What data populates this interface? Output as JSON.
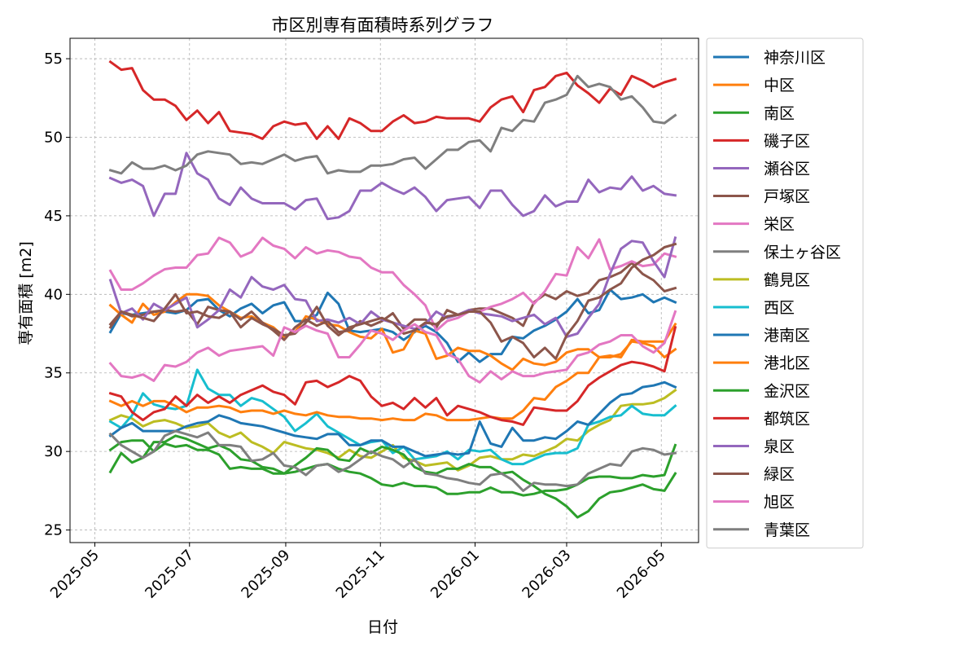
{
  "chart_data": {
    "type": "line",
    "title": "市区別専有面積時系列グラフ",
    "xlabel": "日付",
    "ylabel": "専有面積 [m2]",
    "x_range": [
      "2025-04-15",
      "2026-05-25"
    ],
    "ylim": [
      24.2,
      56.3
    ],
    "x_ticks": [
      {
        "date": "2025-05-01",
        "label": "2025-05"
      },
      {
        "date": "2025-07-01",
        "label": "2025-07"
      },
      {
        "date": "2025-09-01",
        "label": "2025-09"
      },
      {
        "date": "2025-11-01",
        "label": "2025-11"
      },
      {
        "date": "2026-01-01",
        "label": "2026-01"
      },
      {
        "date": "2026-03-01",
        "label": "2026-03"
      },
      {
        "date": "2026-05-01",
        "label": "2026-05"
      }
    ],
    "y_ticks": [
      25,
      30,
      35,
      40,
      45,
      50,
      55
    ],
    "grid": true,
    "legend_position": "outside-right",
    "x": [
      "2025-05-11",
      "2025-05-18",
      "2025-05-25",
      "2025-06-01",
      "2025-06-08",
      "2025-06-15",
      "2025-06-22",
      "2025-06-29",
      "2025-07-06",
      "2025-07-13",
      "2025-07-20",
      "2025-07-27",
      "2025-08-03",
      "2025-08-10",
      "2025-08-17",
      "2025-08-24",
      "2025-08-31",
      "2025-09-07",
      "2025-09-14",
      "2025-09-21",
      "2025-09-28",
      "2025-10-05",
      "2025-10-12",
      "2025-10-19",
      "2025-10-26",
      "2025-11-02",
      "2025-11-09",
      "2025-11-16",
      "2025-11-23",
      "2025-11-30",
      "2025-12-07",
      "2025-12-14",
      "2025-12-21",
      "2025-12-28",
      "2026-01-04",
      "2026-01-11",
      "2026-01-18",
      "2026-01-25",
      "2026-02-01",
      "2026-02-08",
      "2026-02-15",
      "2026-02-22",
      "2026-03-01",
      "2026-03-08",
      "2026-03-15",
      "2026-03-22",
      "2026-03-29",
      "2026-04-05",
      "2026-04-12",
      "2026-04-19",
      "2026-04-26",
      "2026-05-03",
      "2026-05-10"
    ],
    "series": [
      {
        "name": "神奈川区",
        "color": "#1f77b4",
        "values": [
          37.6,
          38.8,
          38.7,
          38.8,
          38.9,
          38.9,
          38.8,
          39.0,
          39.6,
          39.7,
          39.0,
          38.6,
          39.1,
          39.4,
          38.8,
          39.3,
          39.5,
          38.3,
          38.3,
          38.7,
          40.1,
          39.4,
          37.7,
          37.6,
          37.7,
          37.8,
          37.6,
          37.1,
          37.6,
          38.0,
          37.6,
          36.9,
          35.7,
          36.3,
          35.7,
          36.2,
          36.2,
          37.3,
          37.2,
          37.7,
          38.0,
          38.4,
          38.9,
          39.7,
          38.8,
          39.0,
          40.3,
          39.7,
          39.8,
          40.0,
          39.5,
          39.8,
          39.5
        ]
      },
      {
        "name": "中区",
        "color": "#ff7f0e",
        "values": [
          39.3,
          38.7,
          38.2,
          39.4,
          38.7,
          38.9,
          39.5,
          40.0,
          40.0,
          39.9,
          39.3,
          38.9,
          38.5,
          38.6,
          38.2,
          37.9,
          37.3,
          37.6,
          38.6,
          38.4,
          38.1,
          38.0,
          37.6,
          37.3,
          37.2,
          37.8,
          36.3,
          36.5,
          37.7,
          37.5,
          35.9,
          36.1,
          36.6,
          36.4,
          36.4,
          36.1,
          35.6,
          35.2,
          35.9,
          35.6,
          35.5,
          35.7,
          36.3,
          36.5,
          36.5,
          36.0,
          36.1,
          36.0,
          37.1,
          37.0,
          37.0,
          37.0,
          38.1
        ]
      },
      {
        "name": "南区",
        "color": "#2ca02c",
        "values": [
          30.1,
          30.6,
          30.7,
          30.7,
          30.0,
          30.5,
          30.3,
          30.4,
          30.1,
          30.1,
          29.8,
          28.9,
          29.0,
          28.9,
          28.9,
          28.6,
          28.6,
          28.7,
          28.9,
          29.1,
          29.2,
          28.9,
          28.7,
          28.6,
          28.3,
          27.9,
          27.8,
          28.0,
          27.8,
          27.8,
          27.7,
          27.3,
          27.3,
          27.4,
          27.4,
          27.7,
          27.4,
          27.4,
          27.2,
          27.3,
          27.5,
          27.5,
          27.6,
          27.9,
          28.3,
          28.4,
          28.4,
          28.3,
          28.3,
          28.5,
          28.4,
          28.5,
          30.4
        ]
      },
      {
        "name": "磯子区",
        "color": "#d62728",
        "values": [
          54.8,
          54.3,
          54.4,
          53.0,
          52.4,
          52.4,
          52.0,
          51.1,
          51.7,
          50.9,
          51.6,
          50.4,
          50.3,
          50.2,
          49.9,
          50.7,
          51.0,
          50.8,
          50.9,
          49.9,
          50.7,
          49.9,
          51.2,
          50.9,
          50.4,
          50.4,
          51.0,
          51.4,
          50.9,
          51.0,
          51.3,
          51.2,
          51.2,
          51.2,
          51.0,
          51.9,
          52.4,
          52.6,
          51.6,
          53.0,
          53.2,
          53.9,
          54.1,
          53.3,
          52.8,
          52.2,
          53.1,
          52.7,
          53.9,
          53.6,
          53.2,
          53.5,
          53.7
        ]
      },
      {
        "name": "瀬谷区",
        "color": "#9467bd",
        "values": [
          47.4,
          47.1,
          47.3,
          46.9,
          45.0,
          46.4,
          46.4,
          49.0,
          47.7,
          47.3,
          46.1,
          45.7,
          46.8,
          46.1,
          45.8,
          45.8,
          45.8,
          45.4,
          46.0,
          46.1,
          44.8,
          44.9,
          45.3,
          46.6,
          46.6,
          47.1,
          46.7,
          46.4,
          46.8,
          46.2,
          45.3,
          46.0,
          46.1,
          46.2,
          45.5,
          46.6,
          46.6,
          45.7,
          45.0,
          45.3,
          46.3,
          45.6,
          45.9,
          45.9,
          47.3,
          46.5,
          46.8,
          46.7,
          47.5,
          46.6,
          46.9,
          46.4,
          46.3
        ]
      },
      {
        "name": "戸塚区",
        "color": "#8c564b",
        "values": [
          38.1,
          38.9,
          38.6,
          38.7,
          38.9,
          39.0,
          38.9,
          39.0,
          38.1,
          39.2,
          39.0,
          38.9,
          38.4,
          38.9,
          38.2,
          37.7,
          37.1,
          37.9,
          38.4,
          38.0,
          38.3,
          37.6,
          37.7,
          38.3,
          38.0,
          38.3,
          38.8,
          37.8,
          38.4,
          38.4,
          37.9,
          39.0,
          38.7,
          39.0,
          39.1,
          39.1,
          38.8,
          38.5,
          38.0,
          39.5,
          40.0,
          39.7,
          40.2,
          39.9,
          40.1,
          40.9,
          41.1,
          41.4,
          42.0,
          41.3,
          40.9,
          40.2,
          40.4
        ]
      },
      {
        "name": "栄区",
        "color": "#e377c2",
        "values": [
          41.5,
          40.3,
          40.3,
          40.7,
          41.2,
          41.6,
          41.7,
          41.7,
          42.5,
          42.6,
          43.6,
          43.3,
          42.4,
          42.7,
          43.6,
          43.1,
          42.9,
          42.3,
          43.0,
          42.6,
          42.8,
          42.7,
          42.4,
          42.3,
          41.7,
          41.4,
          41.4,
          40.6,
          40.0,
          39.3,
          37.7,
          38.3,
          38.5,
          38.9,
          38.9,
          39.2,
          39.4,
          39.7,
          40.1,
          39.4,
          40.2,
          41.3,
          41.2,
          43.0,
          42.3,
          43.5,
          41.6,
          41.8,
          42.1,
          41.8,
          41.9,
          42.6,
          42.4
        ]
      },
      {
        "name": "保土ヶ谷区",
        "color": "#7f7f7f",
        "values": [
          47.9,
          47.7,
          48.4,
          48.0,
          48.0,
          48.2,
          47.9,
          48.2,
          48.9,
          49.1,
          49.0,
          48.9,
          48.3,
          48.4,
          48.3,
          48.6,
          48.9,
          48.5,
          48.7,
          48.8,
          47.7,
          47.9,
          47.8,
          47.8,
          48.2,
          48.2,
          48.3,
          48.6,
          48.7,
          48.0,
          48.6,
          49.2,
          49.2,
          49.7,
          49.8,
          49.1,
          50.6,
          50.4,
          51.1,
          51.0,
          52.2,
          52.4,
          52.7,
          53.9,
          53.2,
          53.4,
          53.2,
          52.4,
          52.6,
          51.9,
          51.0,
          50.9,
          51.4
        ]
      },
      {
        "name": "鶴見区",
        "color": "#bcbd22",
        "values": [
          32.0,
          32.3,
          32.1,
          31.6,
          31.9,
          32.0,
          31.8,
          31.5,
          31.6,
          31.8,
          31.2,
          30.9,
          31.2,
          30.6,
          30.3,
          29.9,
          30.6,
          30.4,
          30.2,
          30.1,
          29.9,
          29.6,
          30.1,
          29.7,
          29.6,
          30.0,
          30.4,
          29.6,
          29.4,
          29.1,
          29.2,
          29.3,
          28.8,
          29.1,
          29.6,
          29.7,
          29.5,
          29.5,
          29.8,
          29.7,
          30.0,
          30.3,
          30.8,
          30.7,
          31.3,
          31.7,
          32.0,
          32.9,
          33.0,
          33.0,
          33.1,
          33.4,
          33.9
        ]
      },
      {
        "name": "西区",
        "color": "#17becf",
        "values": [
          31.9,
          31.5,
          32.3,
          33.7,
          33.0,
          32.8,
          32.7,
          32.9,
          35.2,
          34.0,
          33.6,
          33.6,
          32.9,
          33.4,
          33.2,
          32.7,
          32.2,
          31.3,
          31.8,
          32.4,
          31.6,
          31.2,
          30.8,
          30.4,
          30.6,
          30.7,
          29.9,
          30.3,
          29.5,
          29.6,
          29.7,
          30.0,
          29.5,
          30.1,
          30.0,
          30.1,
          29.5,
          29.2,
          29.2,
          29.5,
          29.8,
          29.9,
          29.9,
          30.2,
          31.7,
          31.9,
          32.2,
          32.3,
          32.9,
          32.4,
          32.3,
          32.3,
          32.9
        ]
      },
      {
        "name": "港南区",
        "color": "#1f77b4",
        "values": [
          31.0,
          31.5,
          31.8,
          31.3,
          31.3,
          31.3,
          31.3,
          31.6,
          31.8,
          31.9,
          32.3,
          32.1,
          31.8,
          31.7,
          31.6,
          31.4,
          31.2,
          31.0,
          30.9,
          30.8,
          31.1,
          31.1,
          30.4,
          30.4,
          30.7,
          30.7,
          30.3,
          30.3,
          30.0,
          29.7,
          29.8,
          29.9,
          29.8,
          29.9,
          31.9,
          30.5,
          30.3,
          31.5,
          30.7,
          30.7,
          30.9,
          30.8,
          31.3,
          31.9,
          31.7,
          32.4,
          33.1,
          33.6,
          33.7,
          34.1,
          34.2,
          34.4,
          34.1
        ]
      },
      {
        "name": "港北区",
        "color": "#ff7f0e",
        "values": [
          33.2,
          32.9,
          33.2,
          32.9,
          33.2,
          33.2,
          32.9,
          32.5,
          32.8,
          32.8,
          32.9,
          32.8,
          32.5,
          32.6,
          32.6,
          32.4,
          32.6,
          32.4,
          32.3,
          32.5,
          32.3,
          32.2,
          32.2,
          32.1,
          32.1,
          32.0,
          32.1,
          32.0,
          32.0,
          32.4,
          32.3,
          32.0,
          32.0,
          32.0,
          32.1,
          32.2,
          32.1,
          32.1,
          32.6,
          33.4,
          33.3,
          34.1,
          34.5,
          35.0,
          35.0,
          36.0,
          36.0,
          36.2,
          37.0,
          36.9,
          36.7,
          36.0,
          36.5
        ]
      },
      {
        "name": "金沢区",
        "color": "#2ca02c",
        "values": [
          28.7,
          29.9,
          29.3,
          29.6,
          30.6,
          30.6,
          31.0,
          30.8,
          30.5,
          30.2,
          30.4,
          30.1,
          29.5,
          29.4,
          29.0,
          28.9,
          28.6,
          29.1,
          29.6,
          30.2,
          30.1,
          29.5,
          29.4,
          30.2,
          29.9,
          30.3,
          30.1,
          29.8,
          29.0,
          28.7,
          28.6,
          28.9,
          28.9,
          29.2,
          29.0,
          29.0,
          28.6,
          28.7,
          28.2,
          27.8,
          27.3,
          27.0,
          26.5,
          25.8,
          26.2,
          27.0,
          27.4,
          27.5,
          27.7,
          27.9,
          27.6,
          27.5,
          28.6
        ]
      },
      {
        "name": "都筑区",
        "color": "#d62728",
        "values": [
          33.7,
          33.5,
          32.5,
          32.0,
          32.5,
          32.7,
          33.5,
          32.9,
          33.6,
          33.1,
          33.5,
          33.1,
          33.6,
          33.9,
          34.2,
          33.8,
          33.6,
          33.0,
          34.4,
          34.5,
          34.1,
          34.4,
          34.8,
          34.5,
          33.5,
          32.9,
          33.1,
          32.7,
          33.4,
          32.8,
          33.4,
          32.3,
          32.9,
          32.7,
          32.5,
          32.2,
          32.0,
          31.9,
          31.7,
          32.8,
          32.7,
          32.6,
          32.6,
          33.2,
          34.2,
          34.7,
          35.1,
          35.5,
          35.7,
          35.6,
          35.4,
          35.1,
          37.9
        ]
      },
      {
        "name": "泉区",
        "color": "#9467bd",
        "values": [
          40.9,
          38.8,
          39.1,
          38.4,
          39.4,
          39.0,
          39.4,
          39.8,
          37.9,
          38.4,
          39.0,
          40.3,
          39.8,
          41.1,
          40.5,
          40.3,
          40.6,
          39.7,
          39.6,
          38.3,
          38.4,
          38.2,
          38.5,
          38.1,
          38.9,
          38.4,
          38.2,
          38.0,
          37.8,
          38.1,
          38.9,
          38.5,
          38.7,
          39.0,
          38.8,
          38.7,
          38.6,
          38.3,
          38.5,
          38.7,
          38.1,
          38.5,
          37.3,
          37.5,
          38.5,
          39.4,
          41.3,
          42.9,
          43.4,
          43.3,
          42.1,
          41.1,
          43.6
        ]
      },
      {
        "name": "緑区",
        "color": "#8c564b",
        "values": [
          37.9,
          38.9,
          38.7,
          38.5,
          38.3,
          39.1,
          40.0,
          38.8,
          38.9,
          38.6,
          38.5,
          38.9,
          37.9,
          38.5,
          38.1,
          37.8,
          37.4,
          37.5,
          38.2,
          39.2,
          38.0,
          37.4,
          37.9,
          38.1,
          38.3,
          38.5,
          38.2,
          37.5,
          37.7,
          38.2,
          38.1,
          38.6,
          38.7,
          38.9,
          38.9,
          38.2,
          37.0,
          37.3,
          36.9,
          36.0,
          36.6,
          35.9,
          37.4,
          38.3,
          39.6,
          39.8,
          40.3,
          40.7,
          41.7,
          42.2,
          42.5,
          43.0,
          43.2
        ]
      },
      {
        "name": "旭区",
        "color": "#e377c2",
        "values": [
          35.6,
          34.8,
          34.7,
          34.9,
          34.5,
          35.5,
          35.4,
          35.7,
          36.3,
          36.6,
          36.1,
          36.4,
          36.5,
          36.6,
          36.7,
          36.1,
          37.9,
          37.6,
          38.0,
          37.7,
          37.5,
          36.0,
          36.0,
          36.8,
          37.7,
          37.5,
          37.1,
          37.7,
          38.1,
          37.6,
          37.4,
          36.2,
          35.9,
          34.8,
          34.4,
          35.1,
          34.6,
          35.1,
          34.8,
          34.8,
          35.0,
          35.1,
          35.2,
          36.1,
          36.3,
          36.8,
          37.0,
          37.4,
          37.4,
          36.7,
          36.3,
          36.9,
          38.9
        ]
      },
      {
        "name": "青葉区",
        "color": "#7f7f7f",
        "values": [
          31.1,
          30.4,
          30.0,
          29.6,
          30.0,
          31.0,
          31.3,
          31.1,
          30.9,
          31.2,
          30.4,
          30.4,
          30.3,
          29.4,
          29.5,
          29.9,
          29.1,
          29.0,
          28.5,
          29.1,
          29.2,
          28.7,
          29.0,
          29.5,
          30.0,
          29.7,
          29.5,
          29.0,
          29.5,
          28.6,
          28.5,
          28.3,
          28.2,
          28.0,
          27.9,
          28.5,
          28.6,
          28.2,
          27.5,
          28.0,
          27.9,
          27.9,
          27.8,
          27.9,
          28.6,
          28.9,
          29.2,
          29.1,
          30.0,
          30.2,
          30.1,
          29.8,
          29.9
        ]
      }
    ]
  }
}
